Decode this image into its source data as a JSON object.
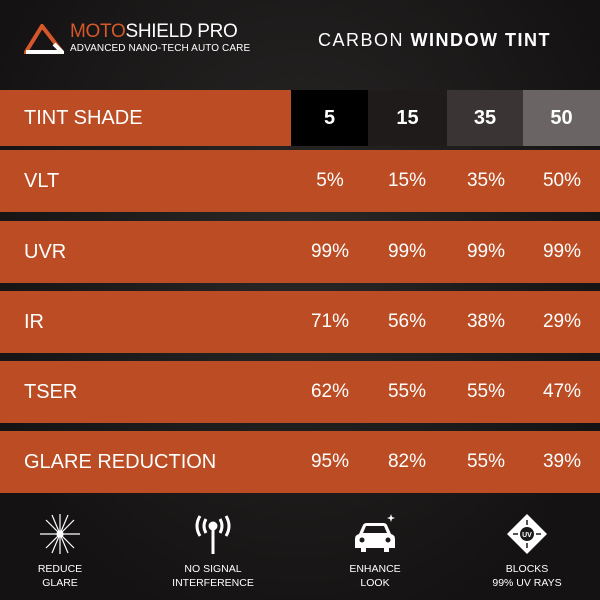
{
  "brand": {
    "name_part1": "MOTO",
    "name_part2": "SHIELD PRO",
    "tagline": "ADVANCED NANO-TECH AUTO CARE"
  },
  "title": {
    "light": "CARBON",
    "bold": "WINDOW TINT"
  },
  "header": {
    "label": "TINT SHADE",
    "shades": [
      "5",
      "15",
      "35",
      "50"
    ],
    "shade_colors": [
      "#000000",
      "#1e1b1a",
      "#3a3534",
      "#6a6564"
    ]
  },
  "rows": [
    {
      "label": "VLT",
      "values": [
        "5%",
        "15%",
        "35%",
        "50%"
      ]
    },
    {
      "label": "UVR",
      "values": [
        "99%",
        "99%",
        "99%",
        "99%"
      ]
    },
    {
      "label": "IR",
      "values": [
        "71%",
        "56%",
        "38%",
        "29%"
      ]
    },
    {
      "label": "TSER",
      "values": [
        "62%",
        "55%",
        "55%",
        "47%"
      ]
    },
    {
      "label": "GLARE REDUCTION",
      "values": [
        "95%",
        "82%",
        "55%",
        "39%"
      ]
    }
  ],
  "features": [
    {
      "icon": "glare-star-icon",
      "line1": "REDUCE",
      "line2": "GLARE"
    },
    {
      "icon": "antenna-signal-icon",
      "line1": "NO SIGNAL",
      "line2": "INTERFERENCE"
    },
    {
      "icon": "car-sparkle-icon",
      "line1": "ENHANCE",
      "line2": "LOOK"
    },
    {
      "icon": "uv-shield-icon",
      "line1": "BLOCKS",
      "line2": "99% UV RAYS"
    }
  ],
  "colors": {
    "accent": "#bb4c23",
    "background": "#1a1818"
  }
}
